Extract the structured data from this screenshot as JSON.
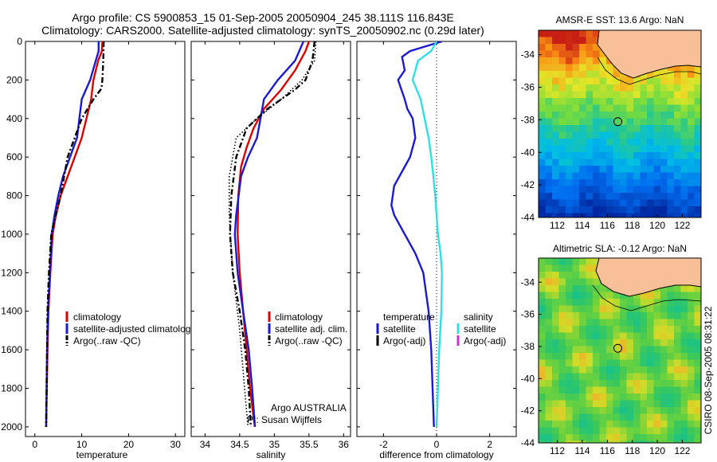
{
  "header": {
    "line1": "Argo profile: CS 5900853_15 01-Sep-2005 20050904_245 38.111S 116.843E",
    "line2": "Climatology: CARS2000. Satellite-adjusted climatology: synTS_20050902.nc (0.29d later)"
  },
  "side_stamp": "CSIRO 08-Sep-2005 08:31:22",
  "colors": {
    "climatology": "#e00000",
    "satellite": "#1a1ad0",
    "argo": "#000000",
    "salinity_diff": "#30e0e0",
    "argo_adj": "#d030d0",
    "land": "#f8c098"
  },
  "chart_data": [
    {
      "type": "line",
      "name": "temperature-profile",
      "xlabel": "temperature",
      "xlim": [
        -2,
        32
      ],
      "ylim": [
        0,
        2050
      ],
      "y_inverted": true,
      "xticks": [
        0,
        10,
        20,
        30
      ],
      "yticks": [
        0,
        200,
        400,
        600,
        800,
        1000,
        1200,
        1400,
        1600,
        1800,
        2000
      ],
      "legend": [
        "climatology",
        "satellite-adjusted climatology",
        "Argo(..raw -QC)"
      ],
      "series": [
        {
          "name": "climatology",
          "style": "solid",
          "color": "#e00000",
          "x": [
            14.4,
            14.3,
            13.5,
            12.5,
            12.0,
            11.0,
            10.0,
            8.5,
            7.0,
            5.5,
            4.5,
            3.8,
            3.3,
            2.9,
            2.7,
            2.55,
            2.4
          ],
          "y": [
            0,
            50,
            100,
            200,
            300,
            400,
            500,
            600,
            700,
            800,
            900,
            1000,
            1200,
            1400,
            1600,
            1800,
            2000
          ]
        },
        {
          "name": "satellite-adjusted climatology",
          "style": "solid",
          "color": "#1a1ad0",
          "x": [
            13.6,
            13.6,
            13.0,
            11.8,
            10.0,
            9.5,
            9.0,
            7.5,
            6.0,
            5.0,
            4.2,
            3.6,
            3.2,
            2.8,
            2.6,
            2.5,
            2.4
          ],
          "y": [
            0,
            50,
            100,
            200,
            300,
            400,
            500,
            600,
            700,
            800,
            900,
            1000,
            1200,
            1400,
            1600,
            1800,
            2000
          ]
        },
        {
          "name": "Argo(..raw -QC)",
          "style": "dashdot",
          "color": "#000000",
          "x": [
            14.7,
            14.6,
            14.4,
            14.2,
            12.5,
            10.0,
            8.5,
            7.0,
            5.5,
            4.5,
            3.5,
            3.0,
            2.7,
            2.5,
            2.4
          ],
          "y": [
            0,
            100,
            200,
            245,
            300,
            400,
            500,
            600,
            800,
            900,
            1000,
            1200,
            1400,
            1800,
            2000
          ]
        }
      ]
    },
    {
      "type": "line",
      "name": "salinity-profile",
      "xlabel": "salinity",
      "xlim": [
        33.8,
        36.1
      ],
      "ylim": [
        0,
        2050
      ],
      "y_inverted": true,
      "xticks": [
        34,
        34.5,
        35,
        35.5,
        36
      ],
      "legend": [
        "climatology",
        "satellite adj. clim.",
        "Argo(..raw -QC)"
      ],
      "annotation": [
        "Argo AUSTRALIA",
        "PI: Susan Wijffels"
      ],
      "series": [
        {
          "name": "climatology",
          "style": "solid",
          "color": "#e00000",
          "x": [
            35.5,
            35.45,
            35.3,
            35.1,
            34.85,
            34.7,
            34.6,
            34.52,
            34.48,
            34.47,
            34.5,
            34.55,
            34.6,
            34.65,
            34.7,
            34.72
          ],
          "y": [
            0,
            50,
            150,
            250,
            350,
            450,
            550,
            650,
            800,
            1000,
            1200,
            1400,
            1600,
            1800,
            1950,
            2000
          ]
        },
        {
          "name": "satellite adj. clim.",
          "style": "solid",
          "color": "#1a1ad0",
          "x": [
            35.42,
            35.3,
            35.05,
            34.85,
            34.8,
            34.75,
            34.62,
            34.52,
            34.45,
            34.43,
            34.47,
            34.55,
            34.63,
            34.68,
            34.72
          ],
          "y": [
            0,
            100,
            200,
            300,
            400,
            500,
            600,
            700,
            900,
            1000,
            1200,
            1400,
            1600,
            1800,
            2000
          ]
        },
        {
          "name": "Argo(..raw -QC)",
          "style": "dashdot",
          "color": "#000000",
          "x": [
            35.58,
            35.55,
            35.45,
            35.3,
            34.9,
            34.6,
            34.45,
            34.38,
            34.36,
            34.4,
            34.5,
            34.58,
            34.63,
            34.66
          ],
          "y": [
            0,
            100,
            200,
            250,
            350,
            450,
            600,
            800,
            1000,
            1200,
            1400,
            1600,
            1800,
            2000
          ]
        },
        {
          "name": "",
          "style": "dotted",
          "color": "#000000",
          "x": [
            35.6,
            35.58,
            35.4,
            35.1,
            34.75,
            34.45,
            34.35,
            34.35,
            34.4,
            34.5,
            34.57,
            34.62
          ],
          "y": [
            0,
            100,
            200,
            300,
            400,
            500,
            700,
            900,
            1200,
            1500,
            1800,
            2000
          ]
        }
      ]
    },
    {
      "type": "line",
      "name": "difference-profile",
      "xlabel": "difference from climatology",
      "xlim": [
        -3,
        3
      ],
      "ylim": [
        0,
        2050
      ],
      "y_inverted": true,
      "xticks": [
        -2,
        0,
        2
      ],
      "legend_left": {
        "title": "temperature",
        "items": [
          "satellite",
          "Argo(-adj)"
        ]
      },
      "legend_right": {
        "title": "salinity",
        "items": [
          "satellite",
          "Argo(-adj)"
        ]
      },
      "series": [
        {
          "name": "temperature satellite",
          "style": "solid",
          "color": "#1a1ad0",
          "x": [
            0.2,
            -1.0,
            -1.3,
            -1.2,
            -1.45,
            -1.2,
            -1.1,
            -0.9,
            -0.8,
            -1.0,
            -1.6,
            -1.7,
            -1.6,
            -1.2,
            -0.8,
            -0.5,
            -0.3,
            -0.2,
            -0.15,
            -0.1
          ],
          "y": [
            0,
            50,
            80,
            150,
            200,
            300,
            350,
            400,
            500,
            600,
            750,
            850,
            900,
            1000,
            1100,
            1200,
            1400,
            1600,
            1800,
            2000
          ]
        },
        {
          "name": "salinity satellite",
          "style": "solid",
          "color": "#30e0e0",
          "x": [
            0.0,
            -0.2,
            -0.7,
            -0.9,
            -0.6,
            -0.45,
            -0.3,
            -0.2,
            -0.12,
            -0.05,
            0.0,
            0.05,
            0.15,
            0.2,
            0.18,
            0.1,
            0.05,
            0.0
          ],
          "y": [
            0,
            50,
            100,
            200,
            300,
            400,
            500,
            600,
            700,
            800,
            900,
            1000,
            1100,
            1200,
            1400,
            1600,
            1800,
            2000
          ]
        }
      ]
    },
    {
      "type": "heatmap",
      "name": "sst-map",
      "title": "AMSR-E SST: 13.6 Argo: NaN",
      "xlim": [
        110.5,
        123.5
      ],
      "ylim": [
        -44,
        -32.5
      ],
      "xticks": [
        112,
        114,
        116,
        118,
        120,
        122
      ],
      "yticks": [
        -34,
        -36,
        -38,
        -40,
        -42,
        -44
      ],
      "marker": {
        "lon": 116.843,
        "lat": -38.111
      }
    },
    {
      "type": "heatmap",
      "name": "sla-map",
      "title": "Altimetric SLA: -0.12 Argo: NaN",
      "xlim": [
        110.5,
        123.5
      ],
      "ylim": [
        -44,
        -32.5
      ],
      "xticks": [
        112,
        114,
        116,
        118,
        120,
        122
      ],
      "yticks": [
        -34,
        -36,
        -38,
        -40,
        -42,
        -44
      ],
      "marker": {
        "lon": 116.843,
        "lat": -38.111
      }
    }
  ]
}
